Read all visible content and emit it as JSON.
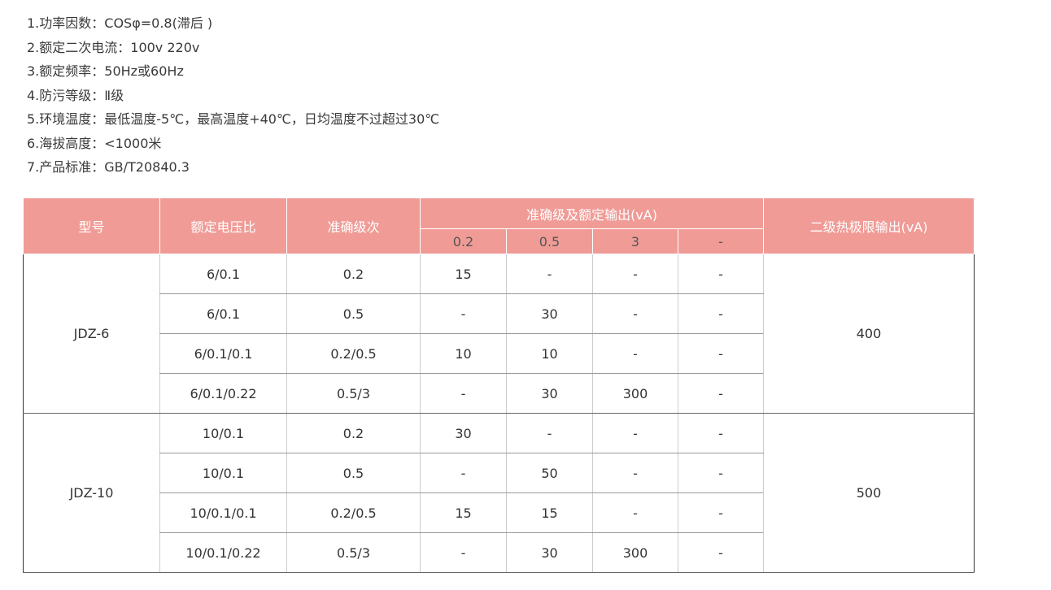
{
  "specs": [
    "1.功率因数：COSφ=0.8(滞后 )",
    "2.额定二次电流：100v  220v",
    "3.额定频率：50Hz或60Hz",
    "4.防污等级：Ⅱ级",
    "5.环境温度：最低温度-5℃，最高温度+40℃，日均温度不过超过30℃",
    "6.海拔高度：<1000米",
    "7.产品标准：GB/T20840.3"
  ],
  "table": {
    "headers": {
      "model": "型号",
      "ratio": "额定电压比",
      "accuracy": "准确级次",
      "output_group": "准确级及额定输出(vA)",
      "limit": "二级热极限输出(vA)",
      "sub": [
        "0.2",
        "0.5",
        "3",
        "-"
      ]
    },
    "groups": [
      {
        "model": "JDZ-6",
        "limit": "400",
        "rows": [
          [
            "6/0.1",
            "0.2",
            "15",
            "-",
            "-",
            "-"
          ],
          [
            "6/0.1",
            "0.5",
            "-",
            "30",
            "-",
            "-"
          ],
          [
            "6/0.1/0.1",
            "0.2/0.5",
            "10",
            "10",
            "-",
            "-"
          ],
          [
            "6/0.1/0.22",
            "0.5/3",
            "-",
            "30",
            "300",
            "-"
          ]
        ]
      },
      {
        "model": "JDZ-10",
        "limit": "500",
        "rows": [
          [
            "10/0.1",
            "0.2",
            "30",
            "-",
            "-",
            "-"
          ],
          [
            "10/0.1",
            "0.5",
            "-",
            "50",
            "-",
            "-"
          ],
          [
            "10/0.1/0.1",
            "0.2/0.5",
            "15",
            "15",
            "-",
            "-"
          ],
          [
            "10/0.1/0.22",
            "0.5/3",
            "-",
            "30",
            "300",
            "-"
          ]
        ]
      }
    ]
  }
}
